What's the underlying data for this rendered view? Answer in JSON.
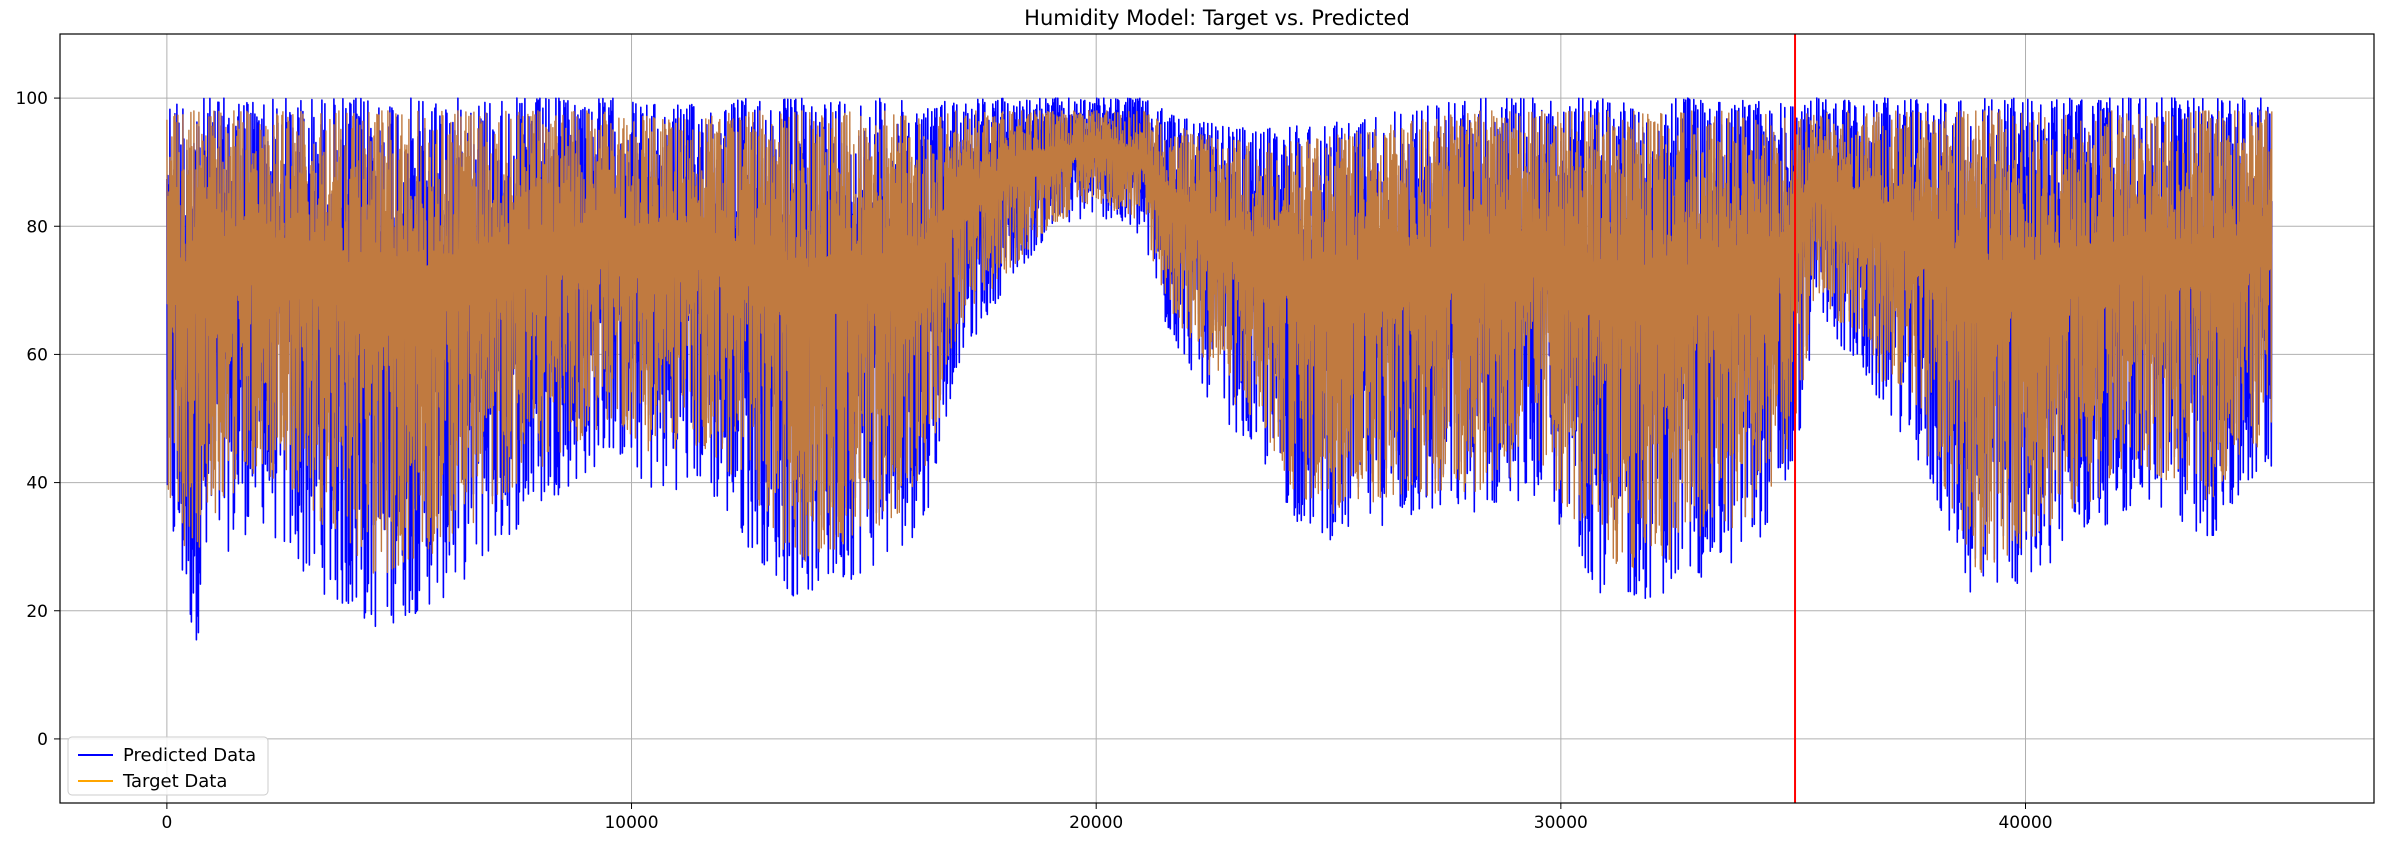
{
  "chart_data": {
    "type": "line",
    "title": "Humidity Model: Target vs. Predicted",
    "xlabel": "",
    "ylabel": "",
    "xlim": [
      -2300,
      47500
    ],
    "ylim": [
      -10,
      110
    ],
    "x_ticks": [
      0,
      10000,
      20000,
      30000,
      40000
    ],
    "y_ticks": [
      0,
      20,
      40,
      60,
      80,
      100
    ],
    "grid": true,
    "legend_position": "lower left",
    "vline": {
      "x": 35040,
      "color": "#ff0000"
    },
    "x_range": [
      0,
      45300
    ],
    "colors": {
      "predicted": "#0000ff",
      "target": "#ffa500",
      "overlap": "#c07a40"
    },
    "series": [
      {
        "name": "Predicted Data",
        "color": "#0000ff",
        "envelope": {
          "x": [
            0,
            300,
            600,
            1000,
            2000,
            3000,
            3800,
            4500,
            5200,
            6000,
            7000,
            8000,
            9000,
            9600,
            10500,
            11500,
            12500,
            13500,
            14500,
            15500,
            16300,
            17000,
            18000,
            19000,
            20000,
            21000,
            21500,
            22500,
            23500,
            24300,
            25000,
            26500,
            28000,
            29500,
            30500,
            31000,
            32000,
            33000,
            34000,
            35000,
            35500,
            36500,
            37500,
            38500,
            39000,
            39500,
            41000,
            42500,
            44000,
            45300
          ],
          "low": [
            32,
            23,
            14,
            27,
            34,
            25,
            20,
            17,
            19,
            22,
            29,
            36,
            41,
            45,
            38,
            40,
            30,
            22,
            24,
            28,
            33,
            58,
            70,
            79,
            82,
            78,
            64,
            52,
            44,
            34,
            31,
            34,
            35,
            38,
            27,
            21,
            22,
            25,
            28,
            40,
            67,
            56,
            46,
            30,
            18,
            22,
            30,
            37,
            31,
            42
          ],
          "high": [
            100,
            100,
            100,
            100,
            100,
            100,
            100,
            100,
            100,
            100,
            100,
            100,
            100,
            100,
            99,
            99,
            100,
            100,
            100,
            100,
            99,
            100,
            100,
            100,
            100,
            100,
            98,
            96,
            95,
            96,
            96,
            98,
            100,
            100,
            100,
            100,
            100,
            100,
            100,
            99,
            100,
            100,
            100,
            100,
            100,
            100,
            100,
            100,
            100,
            100
          ]
        }
      },
      {
        "name": "Target Data",
        "color": "#ffa500",
        "envelope": {
          "x": [
            0,
            300,
            600,
            1000,
            2000,
            3000,
            3800,
            4500,
            5200,
            6000,
            7000,
            8000,
            9000,
            9600,
            10500,
            11500,
            12500,
            13500,
            14500,
            15500,
            16300,
            17000,
            18000,
            19000,
            20000,
            21000,
            21500,
            22500,
            23500,
            24300,
            25000,
            26500,
            28000,
            29500,
            30500,
            31000,
            32000,
            33000,
            34000,
            35000,
            35500,
            36500,
            37500,
            38500,
            39000,
            39500,
            41000,
            42500,
            44000,
            45300
          ],
          "low": [
            40,
            30,
            28,
            35,
            42,
            36,
            30,
            25,
            27,
            30,
            36,
            42,
            47,
            50,
            44,
            46,
            38,
            27,
            30,
            34,
            38,
            62,
            72,
            80,
            84,
            80,
            68,
            56,
            48,
            38,
            35,
            38,
            38,
            42,
            32,
            26,
            27,
            30,
            33,
            45,
            70,
            60,
            50,
            34,
            25,
            28,
            35,
            42,
            37,
            48
          ],
          "high": [
            97,
            98,
            98,
            98,
            98,
            98,
            98,
            98,
            98,
            98,
            98,
            98,
            98,
            98,
            97,
            97,
            98,
            98,
            98,
            98,
            97,
            98,
            98,
            98,
            98,
            98,
            96,
            94,
            93,
            94,
            94,
            96,
            98,
            98,
            98,
            98,
            98,
            98,
            98,
            97,
            98,
            98,
            98,
            98,
            98,
            98,
            98,
            98,
            98,
            98
          ]
        }
      }
    ]
  }
}
